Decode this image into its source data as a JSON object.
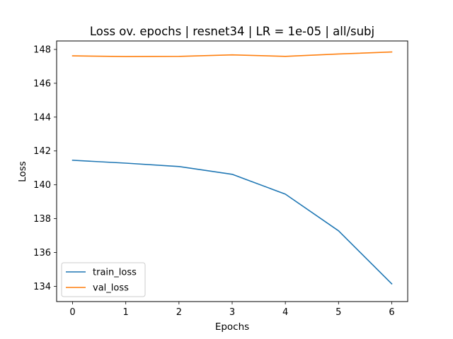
{
  "chart_data": {
    "type": "line",
    "title": "Loss ov. epochs | resnet34 | LR = 1e-05 | all/subj",
    "xlabel": "Epochs",
    "ylabel": "Loss",
    "x": [
      0,
      1,
      2,
      3,
      4,
      5,
      6
    ],
    "xticks": [
      "0",
      "1",
      "2",
      "3",
      "4",
      "5",
      "6"
    ],
    "yticks": [
      "134",
      "136",
      "138",
      "140",
      "142",
      "144",
      "146",
      "148"
    ],
    "ylim": [
      133.1,
      148.5
    ],
    "xlim": [
      -0.3,
      6.3
    ],
    "grid": false,
    "legend_position": "lower-left",
    "series": [
      {
        "name": "train_loss",
        "color": "#1f77b4",
        "values": [
          141.45,
          141.28,
          141.08,
          140.62,
          139.45,
          137.28,
          134.15
        ]
      },
      {
        "name": "val_loss",
        "color": "#ff7f0e",
        "values": [
          147.62,
          147.58,
          147.59,
          147.68,
          147.59,
          147.73,
          147.85
        ]
      }
    ]
  }
}
